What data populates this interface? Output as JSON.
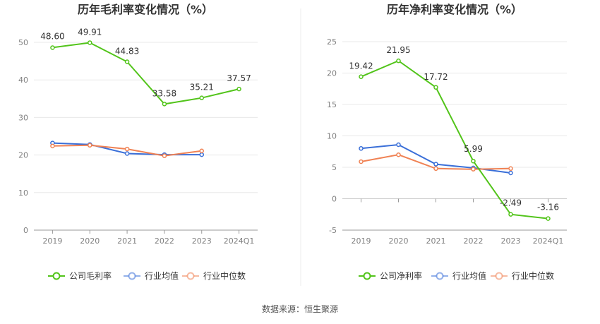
{
  "source_label": "数据来源：恒生聚源",
  "chart_data": [
    {
      "type": "line",
      "title": "历年毛利率变化情况（%）",
      "categories": [
        "2019",
        "2020",
        "2021",
        "2022",
        "2023",
        "2024Q1"
      ],
      "ylim": [
        0,
        50
      ],
      "yticks": [
        0,
        10,
        20,
        30,
        40,
        50
      ],
      "grid": true,
      "legend_position": "bottom",
      "series": [
        {
          "name": "公司毛利率",
          "color": "#52c41a",
          "values": [
            48.6,
            49.91,
            44.83,
            33.58,
            35.21,
            37.57
          ],
          "labels": [
            "48.60",
            "49.91",
            "44.83",
            "33.58",
            "35.21",
            "37.57"
          ]
        },
        {
          "name": "行业均值",
          "color": "#3a6fd8",
          "values": [
            23.2,
            22.8,
            20.4,
            20.1,
            20.1,
            null
          ]
        },
        {
          "name": "行业中位数",
          "color": "#f08254",
          "values": [
            22.4,
            22.6,
            21.6,
            19.8,
            21.1,
            null
          ]
        }
      ]
    },
    {
      "type": "line",
      "title": "历年净利率变化情况（%）",
      "categories": [
        "2019",
        "2020",
        "2021",
        "2022",
        "2023",
        "2024Q1"
      ],
      "ylim": [
        -5,
        25
      ],
      "yticks": [
        -5,
        0,
        5,
        10,
        15,
        20,
        25
      ],
      "grid": true,
      "legend_position": "bottom",
      "series": [
        {
          "name": "公司净利率",
          "color": "#52c41a",
          "values": [
            19.42,
            21.95,
            17.72,
            5.99,
            -2.49,
            -3.16
          ],
          "labels": [
            "19.42",
            "21.95",
            "17.72",
            "5.99",
            "-2.49",
            "-3.16"
          ]
        },
        {
          "name": "行业均值",
          "color": "#3a6fd8",
          "values": [
            8.0,
            8.6,
            5.5,
            4.9,
            4.1,
            null
          ]
        },
        {
          "name": "行业中位数",
          "color": "#f08254",
          "values": [
            5.9,
            7.0,
            4.8,
            4.7,
            4.8,
            null
          ]
        }
      ]
    }
  ]
}
